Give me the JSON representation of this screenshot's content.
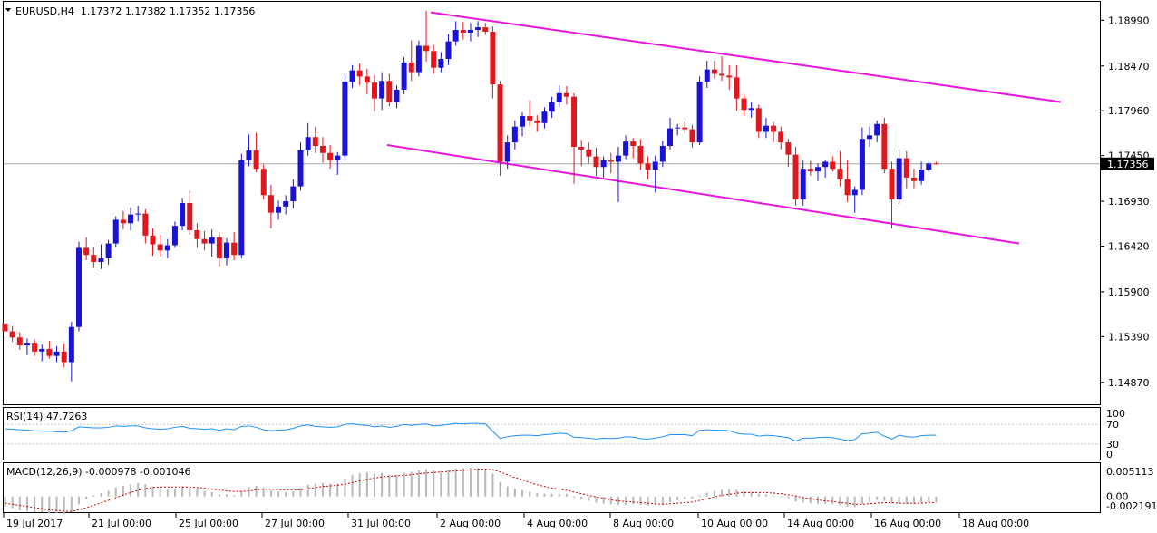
{
  "chart_data": {
    "type": "candlestick",
    "main": {
      "header": "EURUSD,H4  1.17372 1.17382 1.17352 1.17356",
      "y_ticks": [
        "1.18990",
        "1.18470",
        "1.17960",
        "1.17450",
        "1.16930",
        "1.16420",
        "1.15900",
        "1.15390",
        "1.14870"
      ],
      "ylim": [
        1.1462,
        1.192
      ],
      "current_price": "1.17356",
      "current_value": 1.17356,
      "channel_lines": [
        {
          "from": [
            14,
            1.1908
          ],
          "to": [
            203,
            1.1806
          ]
        },
        {
          "from": [
            13,
            1.1757
          ],
          "to": [
            191,
            1.1645
          ]
        }
      ],
      "candles": [
        [
          1.1554,
          1.1558,
          1.1541,
          1.1545
        ],
        [
          1.1545,
          1.1551,
          1.1533,
          1.1538
        ],
        [
          1.1538,
          1.1544,
          1.1524,
          1.1529
        ],
        [
          1.1529,
          1.1537,
          1.1518,
          1.1532
        ],
        [
          1.1532,
          1.1536,
          1.1517,
          1.1522
        ],
        [
          1.1522,
          1.153,
          1.1511,
          1.1525
        ],
        [
          1.1525,
          1.1534,
          1.1514,
          1.1517
        ],
        [
          1.1517,
          1.1528,
          1.151,
          1.1522
        ],
        [
          1.1522,
          1.1531,
          1.1504,
          1.151
        ],
        [
          1.151,
          1.1556,
          1.1488,
          1.155
        ],
        [
          1.155,
          1.1647,
          1.1545,
          1.164
        ],
        [
          1.164,
          1.1652,
          1.1626,
          1.1632
        ],
        [
          1.1632,
          1.1641,
          1.1617,
          1.1624
        ],
        [
          1.1624,
          1.1644,
          1.1616,
          1.1628
        ],
        [
          1.1628,
          1.1649,
          1.1621,
          1.1645
        ],
        [
          1.1645,
          1.1676,
          1.1641,
          1.1672
        ],
        [
          1.1672,
          1.1682,
          1.1661,
          1.1668
        ],
        [
          1.1668,
          1.1686,
          1.166,
          1.1678
        ],
        [
          1.1678,
          1.1688,
          1.167,
          1.1679
        ],
        [
          1.1679,
          1.1684,
          1.1645,
          1.1654
        ],
        [
          1.1654,
          1.1662,
          1.1631,
          1.1644
        ],
        [
          1.1644,
          1.1655,
          1.163,
          1.1637
        ],
        [
          1.1637,
          1.165,
          1.1628,
          1.1643
        ],
        [
          1.1643,
          1.167,
          1.164,
          1.1665
        ],
        [
          1.1665,
          1.1697,
          1.166,
          1.1691
        ],
        [
          1.1691,
          1.1705,
          1.1655,
          1.166
        ],
        [
          1.166,
          1.1668,
          1.164,
          1.165
        ],
        [
          1.165,
          1.1659,
          1.1637,
          1.1645
        ],
        [
          1.1645,
          1.1661,
          1.163,
          1.1652
        ],
        [
          1.1652,
          1.1658,
          1.1618,
          1.1628
        ],
        [
          1.1628,
          1.1651,
          1.162,
          1.1646
        ],
        [
          1.1646,
          1.1658,
          1.1626,
          1.1632
        ],
        [
          1.1632,
          1.1747,
          1.1628,
          1.174
        ],
        [
          1.174,
          1.1769,
          1.1733,
          1.1751
        ],
        [
          1.1751,
          1.1771,
          1.1726,
          1.173
        ],
        [
          1.173,
          1.1735,
          1.1695,
          1.17
        ],
        [
          1.17,
          1.1712,
          1.1662,
          1.168
        ],
        [
          1.168,
          1.1694,
          1.1672,
          1.1687
        ],
        [
          1.1687,
          1.17,
          1.1678,
          1.1693
        ],
        [
          1.1693,
          1.1718,
          1.1685,
          1.171
        ],
        [
          1.171,
          1.176,
          1.1705,
          1.1751
        ],
        [
          1.1751,
          1.1782,
          1.1745,
          1.1766
        ],
        [
          1.1766,
          1.1778,
          1.1748,
          1.1756
        ],
        [
          1.1756,
          1.1766,
          1.1737,
          1.1748
        ],
        [
          1.1748,
          1.1757,
          1.173,
          1.174
        ],
        [
          1.174,
          1.1749,
          1.1723,
          1.1745
        ],
        [
          1.1745,
          1.1838,
          1.174,
          1.1829
        ],
        [
          1.1829,
          1.1848,
          1.1822,
          1.1842
        ],
        [
          1.1842,
          1.185,
          1.1825,
          1.1835
        ],
        [
          1.1835,
          1.1844,
          1.1815,
          1.1828
        ],
        [
          1.1828,
          1.1837,
          1.1795,
          1.181
        ],
        [
          1.181,
          1.184,
          1.1797,
          1.183
        ],
        [
          1.183,
          1.1838,
          1.1801,
          1.1806
        ],
        [
          1.1806,
          1.1825,
          1.1799,
          1.182
        ],
        [
          1.182,
          1.1857,
          1.1815,
          1.1851
        ],
        [
          1.1851,
          1.1876,
          1.183,
          1.184
        ],
        [
          1.184,
          1.1876,
          1.1835,
          1.187
        ],
        [
          1.187,
          1.191,
          1.1852,
          1.1864
        ],
        [
          1.1864,
          1.1871,
          1.1838,
          1.1845
        ],
        [
          1.1845,
          1.1863,
          1.184,
          1.1855
        ],
        [
          1.1855,
          1.1883,
          1.1848,
          1.1875
        ],
        [
          1.1875,
          1.1898,
          1.187,
          1.1888
        ],
        [
          1.1888,
          1.1897,
          1.1877,
          1.1885
        ],
        [
          1.1885,
          1.1896,
          1.1875,
          1.1888
        ],
        [
          1.1888,
          1.1898,
          1.188,
          1.1891
        ],
        [
          1.1891,
          1.1896,
          1.1882,
          1.1886
        ],
        [
          1.1886,
          1.1892,
          1.181,
          1.1826
        ],
        [
          1.1826,
          1.183,
          1.1722,
          1.1738
        ],
        [
          1.1738,
          1.1768,
          1.173,
          1.176
        ],
        [
          1.176,
          1.1785,
          1.1752,
          1.1778
        ],
        [
          1.1778,
          1.1794,
          1.1767,
          1.179
        ],
        [
          1.179,
          1.1808,
          1.1778,
          1.1785
        ],
        [
          1.1785,
          1.1791,
          1.1772,
          1.1782
        ],
        [
          1.1782,
          1.18,
          1.1776,
          1.1795
        ],
        [
          1.1795,
          1.1812,
          1.1788,
          1.1806
        ],
        [
          1.1806,
          1.1825,
          1.18,
          1.1816
        ],
        [
          1.1816,
          1.1824,
          1.1803,
          1.1812
        ],
        [
          1.1812,
          1.1816,
          1.1713,
          1.1755
        ],
        [
          1.1755,
          1.1763,
          1.1733,
          1.1752
        ],
        [
          1.1752,
          1.176,
          1.1736,
          1.1744
        ],
        [
          1.1744,
          1.1754,
          1.1722,
          1.1732
        ],
        [
          1.1732,
          1.1744,
          1.172,
          1.174
        ],
        [
          1.174,
          1.1748,
          1.1725,
          1.1738
        ],
        [
          1.1738,
          1.1755,
          1.1692,
          1.1745
        ],
        [
          1.1745,
          1.1768,
          1.1741,
          1.1761
        ],
        [
          1.1761,
          1.1765,
          1.1742,
          1.1756
        ],
        [
          1.1756,
          1.1764,
          1.1729,
          1.1736
        ],
        [
          1.1736,
          1.1744,
          1.1718,
          1.1729
        ],
        [
          1.1729,
          1.1745,
          1.1703,
          1.1738
        ],
        [
          1.1738,
          1.1762,
          1.1732,
          1.1756
        ],
        [
          1.1756,
          1.1788,
          1.1752,
          1.1776
        ],
        [
          1.1776,
          1.1781,
          1.1768,
          1.1777
        ],
        [
          1.1777,
          1.1783,
          1.177,
          1.1775
        ],
        [
          1.1775,
          1.178,
          1.1754,
          1.176
        ],
        [
          1.176,
          1.1835,
          1.1757,
          1.1829
        ],
        [
          1.1829,
          1.1853,
          1.1822,
          1.1843
        ],
        [
          1.1843,
          1.1853,
          1.1833,
          1.1838
        ],
        [
          1.1838,
          1.1858,
          1.183,
          1.1836
        ],
        [
          1.1836,
          1.1848,
          1.182,
          1.1834
        ],
        [
          1.1834,
          1.1848,
          1.1796,
          1.181
        ],
        [
          1.181,
          1.1815,
          1.179,
          1.1797
        ],
        [
          1.1797,
          1.1806,
          1.1788,
          1.1799
        ],
        [
          1.1799,
          1.1803,
          1.1765,
          1.1772
        ],
        [
          1.1772,
          1.1788,
          1.1765,
          1.1779
        ],
        [
          1.1779,
          1.1783,
          1.176,
          1.1772
        ],
        [
          1.1772,
          1.1778,
          1.1752,
          1.176
        ],
        [
          1.176,
          1.1764,
          1.1732,
          1.1746
        ],
        [
          1.1746,
          1.1755,
          1.1688,
          1.1695
        ],
        [
          1.1695,
          1.174,
          1.1688,
          1.173
        ],
        [
          1.173,
          1.1739,
          1.1722,
          1.1727
        ],
        [
          1.1727,
          1.1736,
          1.1716,
          1.1732
        ],
        [
          1.1732,
          1.174,
          1.172,
          1.1738
        ],
        [
          1.1738,
          1.1744,
          1.1727,
          1.173
        ],
        [
          1.173,
          1.175,
          1.171,
          1.1718
        ],
        [
          1.1718,
          1.174,
          1.1692,
          1.17
        ],
        [
          1.17,
          1.171,
          1.168,
          1.1706
        ],
        [
          1.1706,
          1.1777,
          1.17,
          1.1764
        ],
        [
          1.1764,
          1.1778,
          1.1755,
          1.1768
        ],
        [
          1.1768,
          1.1785,
          1.176,
          1.1781
        ],
        [
          1.1781,
          1.1788,
          1.1725,
          1.173
        ],
        [
          1.173,
          1.1738,
          1.1662,
          1.1695
        ],
        [
          1.1695,
          1.1752,
          1.169,
          1.1742
        ],
        [
          1.1742,
          1.175,
          1.1708,
          1.172
        ],
        [
          1.172,
          1.173,
          1.1708,
          1.1716
        ],
        [
          1.1716,
          1.1738,
          1.1712,
          1.1729
        ],
        [
          1.1729,
          1.1738,
          1.1726,
          1.1736
        ],
        [
          1.1736,
          1.1738,
          1.1735,
          1.17356
        ]
      ]
    },
    "x_labels": [
      "19 Jul 2017",
      "21 Jul 00:00",
      "25 Jul 00:00",
      "27 Jul 00:00",
      "31 Jul 00:00",
      "2 Aug 00:00",
      "4 Aug 00:00",
      "8 Aug 00:00",
      "10 Aug 00:00",
      "14 Aug 00:00",
      "16 Aug 00:00",
      "18 Aug 00:00"
    ],
    "rsi": {
      "label": "RSI(14) 47.7263",
      "value": 47.7263,
      "y_ticks": [
        "100",
        "70",
        "30",
        "0"
      ],
      "levels": [
        30,
        70
      ],
      "ylim": [
        0,
        100
      ],
      "values": [
        61,
        60,
        59,
        58,
        57,
        56,
        56,
        55,
        54,
        57,
        65,
        64,
        63,
        63,
        64,
        67,
        66,
        67,
        67,
        63,
        61,
        60,
        61,
        64,
        66,
        62,
        61,
        60,
        61,
        58,
        61,
        59,
        66,
        67,
        64,
        59,
        57,
        58,
        59,
        62,
        67,
        69,
        66,
        65,
        64,
        65,
        70,
        71,
        69,
        68,
        65,
        67,
        64,
        66,
        70,
        68,
        70,
        71,
        67,
        68,
        70,
        72,
        71,
        72,
        72,
        71,
        56,
        41,
        45,
        47,
        48,
        48,
        47,
        49,
        50,
        52,
        51,
        44,
        43,
        42,
        40,
        42,
        41,
        42,
        45,
        44,
        41,
        40,
        42,
        45,
        49,
        49,
        49,
        47,
        58,
        59,
        58,
        58,
        57,
        52,
        50,
        50,
        46,
        48,
        47,
        45,
        43,
        36,
        42,
        42,
        43,
        44,
        43,
        40,
        37,
        39,
        51,
        52,
        54,
        46,
        40,
        48,
        45,
        44,
        47,
        48,
        48
      ]
    },
    "macd": {
      "label": "MACD(12,26,9) -0.000978 -0.001046",
      "main_value": -0.000978,
      "signal_value": -0.001046,
      "y_ticks": [
        "0.005113",
        "0.00",
        "-0.002191"
      ],
      "ylim": [
        -0.00265,
        0.00565
      ],
      "main": [
        -0.0018,
        -0.0021,
        -0.0025,
        -0.0026,
        -0.0028,
        -0.0028,
        -0.003,
        -0.003,
        -0.0032,
        -0.0028,
        -0.0014,
        -0.0005,
        0.0002,
        0.0006,
        0.001,
        0.0016,
        0.0019,
        0.0022,
        0.0024,
        0.0022,
        0.0018,
        0.0015,
        0.0013,
        0.0014,
        0.0018,
        0.0016,
        0.0013,
        0.001,
        0.0008,
        0.0004,
        0.0004,
        0.0002,
        0.001,
        0.0017,
        0.0019,
        0.0016,
        0.0011,
        0.0009,
        0.0008,
        0.0009,
        0.0015,
        0.0021,
        0.0023,
        0.0024,
        0.0023,
        0.0023,
        0.0032,
        0.0039,
        0.0042,
        0.0043,
        0.0041,
        0.0042,
        0.0039,
        0.0039,
        0.0043,
        0.0044,
        0.0047,
        0.0049,
        0.0047,
        0.0046,
        0.0048,
        0.005,
        0.0051,
        0.0051,
        0.0051,
        0.005,
        0.0041,
        0.0026,
        0.0018,
        0.0014,
        0.0011,
        0.0008,
        0.0006,
        0.0005,
        0.0005,
        0.0005,
        0.0005,
        -0.0001,
        -0.0005,
        -0.0008,
        -0.0011,
        -0.0013,
        -0.0014,
        -0.0015,
        -0.0015,
        -0.0014,
        -0.0015,
        -0.0016,
        -0.0016,
        -0.0014,
        -0.001,
        -0.0007,
        -0.0005,
        -0.0004,
        0.0002,
        0.0007,
        0.001,
        0.0012,
        0.0013,
        0.0012,
        0.001,
        0.0008,
        0.0005,
        0.0004,
        0.0002,
        0.0,
        -0.0003,
        -0.0009,
        -0.0011,
        -0.0012,
        -0.0013,
        -0.0013,
        -0.0014,
        -0.0016,
        -0.0018,
        -0.0019,
        -0.0014,
        -0.001,
        -0.0006,
        -0.0008,
        -0.0013,
        -0.0012,
        -0.0013,
        -0.0013,
        -0.0012,
        -0.0011,
        -0.000978
      ],
      "signal": [
        -0.0012,
        -0.0014,
        -0.0016,
        -0.0018,
        -0.002,
        -0.0022,
        -0.0024,
        -0.0025,
        -0.0026,
        -0.0027,
        -0.0024,
        -0.002,
        -0.0016,
        -0.0011,
        -0.0007,
        -0.0002,
        0.0003,
        0.0007,
        0.0011,
        0.0014,
        0.0016,
        0.0017,
        0.0017,
        0.0017,
        0.0017,
        0.0017,
        0.0016,
        0.0015,
        0.0013,
        0.0012,
        0.001,
        0.0009,
        0.0009,
        0.001,
        0.0012,
        0.0013,
        0.0013,
        0.0012,
        0.0012,
        0.0012,
        0.0012,
        0.0014,
        0.0016,
        0.0018,
        0.0019,
        0.002,
        0.0022,
        0.0025,
        0.0028,
        0.0031,
        0.0033,
        0.0035,
        0.0036,
        0.0037,
        0.0038,
        0.0039,
        0.0041,
        0.0042,
        0.0043,
        0.0044,
        0.0045,
        0.0046,
        0.0047,
        0.0048,
        0.0049,
        0.0049,
        0.0048,
        0.0044,
        0.0039,
        0.0034,
        0.003,
        0.0025,
        0.0021,
        0.0018,
        0.0015,
        0.0013,
        0.0011,
        0.0008,
        0.0005,
        0.0002,
        -0.0001,
        -0.0003,
        -0.0006,
        -0.0008,
        -0.0009,
        -0.001,
        -0.0011,
        -0.0012,
        -0.0013,
        -0.0014,
        -0.0013,
        -0.0012,
        -0.0011,
        -0.001,
        -0.0007,
        -0.0004,
        -0.0001,
        0.0002,
        0.0004,
        0.0006,
        0.0007,
        0.0007,
        0.0007,
        0.0007,
        0.0006,
        0.0005,
        0.0003,
        0.0001,
        -0.0002,
        -0.0004,
        -0.0006,
        -0.0008,
        -0.0009,
        -0.0011,
        -0.0012,
        -0.0014,
        -0.0014,
        -0.0013,
        -0.0012,
        -0.0011,
        -0.0011,
        -0.0012,
        -0.0012,
        -0.0012,
        -0.0012,
        -0.0011,
        -0.001046
      ]
    },
    "colors": {
      "background": "#ffffff",
      "bull": "#1a12d6",
      "bear": "#e0181e",
      "channel": "#e815e0",
      "rsi_line": "#1e90ff",
      "macd_hist": "#b8b8b8",
      "macd_signal": "#cc0000",
      "grid_level": "#c0c0c0",
      "price_label_bg": "#000000",
      "price_label_text": "#ffffff",
      "current_line": "#a8a8a8"
    }
  }
}
